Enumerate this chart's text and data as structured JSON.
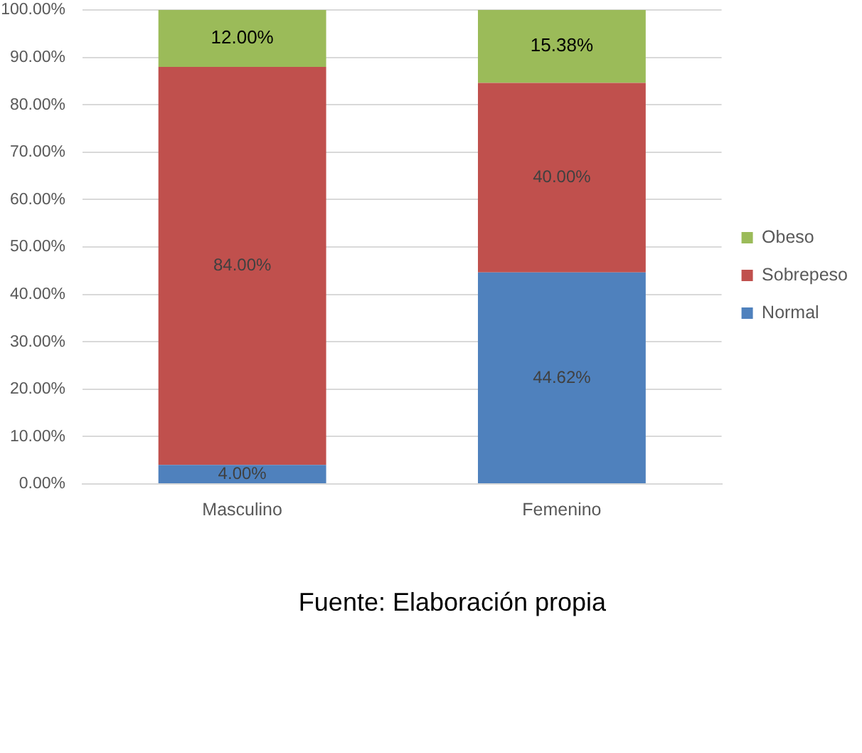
{
  "chart_data": {
    "type": "bar",
    "stacked": true,
    "categories": [
      "Masculino",
      "Femenino"
    ],
    "series": [
      {
        "name": "Normal",
        "color": "#4f81bd",
        "values": [
          4,
          44.62
        ],
        "value_labels": [
          "4.00%",
          "44.62%"
        ]
      },
      {
        "name": "Sobrepeso",
        "color": "#c0504d",
        "values": [
          84,
          40
        ],
        "value_labels": [
          "84.00%",
          "40.00%"
        ]
      },
      {
        "name": "Obeso",
        "color": "#9bbb59",
        "values": [
          12,
          15.38
        ],
        "value_labels": [
          "12.00%",
          "15.38%"
        ]
      }
    ],
    "ylim": [
      0,
      100
    ],
    "yticks": [
      {
        "value": 0,
        "label": "0.00%"
      },
      {
        "value": 10,
        "label": "10.00%"
      },
      {
        "value": 20,
        "label": "20.00%"
      },
      {
        "value": 30,
        "label": "30.00%"
      },
      {
        "value": 40,
        "label": "40.00%"
      },
      {
        "value": 50,
        "label": "50.00%"
      },
      {
        "value": 60,
        "label": "60.00%"
      },
      {
        "value": 70,
        "label": "70.00%"
      },
      {
        "value": 80,
        "label": "80.00%"
      },
      {
        "value": 90,
        "label": "90.00%"
      },
      {
        "value": 100,
        "label": "100.00%"
      }
    ],
    "grid": "y",
    "legend": "right",
    "annotations": [
      "Fuente: Elaboración propia"
    ]
  }
}
